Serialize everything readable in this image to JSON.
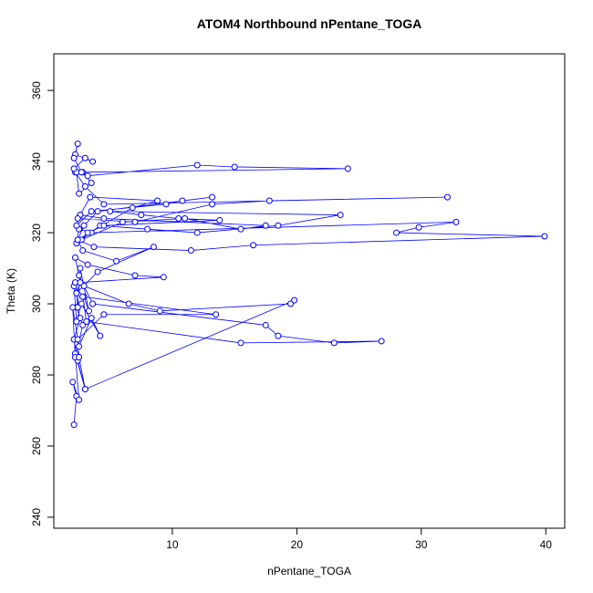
{
  "chart_data": {
    "type": "line_points",
    "title": "ATOM4 Northbound nPentane_TOGA",
    "x_label": "nPentane_TOGA",
    "y_label": "Theta (K)",
    "color": "#0000ff",
    "x": [
      2.1,
      2.3,
      2.0,
      2.5,
      2.2,
      3.0,
      2.4,
      2.1,
      2.6,
      2.3,
      2.8,
      2.2,
      2.0,
      2.5,
      3.5,
      4.2,
      2.7,
      2.3,
      2.1,
      2.9,
      3.3,
      2.6,
      2.4,
      2.2,
      6.5,
      9.0,
      19.5,
      19.8,
      3.0,
      2.5,
      2.4,
      4.5,
      13.5,
      2.8,
      3.1,
      15.5,
      26.8,
      23.0,
      18.5,
      17.5,
      3.6,
      2.9,
      2.5,
      2.2,
      3.2,
      7.0,
      9.3,
      2.6,
      2.3,
      4.0,
      8.5,
      5.5,
      2.8,
      2.4,
      3.7,
      11.5,
      16.5,
      39.9,
      28,
      29.8,
      32.8,
      3.5,
      2.5,
      2.3,
      4.2,
      8.0,
      12.0,
      18.5,
      23.5,
      5.0,
      7.5,
      10.5,
      13.8,
      4.5,
      3.2,
      2.7,
      6.0,
      11.0,
      15.5,
      17.5,
      4.5,
      2.6,
      2.3,
      3.5,
      9.5,
      10.8,
      13.2,
      4.0,
      2.9,
      2.4,
      6.8,
      8.8,
      3.4,
      2.6,
      2.4,
      7.0,
      13.2,
      17.8,
      32.1,
      4.5,
      3.0,
      2.2,
      3.2,
      12.0,
      15.0,
      24.1,
      2.8,
      3.5,
      2.5,
      2.3,
      2.1,
      3.0,
      3.6,
      2.2,
      2.4,
      2.1,
      2.7
    ],
    "values": [
      266,
      274,
      278,
      273,
      286,
      276,
      284,
      290,
      296,
      299,
      294,
      285,
      299,
      288,
      296,
      291,
      300,
      295,
      305,
      302,
      298,
      310,
      299,
      306,
      300,
      298,
      300,
      301,
      276,
      285,
      290,
      297,
      297,
      302,
      295,
      289,
      289.5,
      289,
      291,
      294,
      300,
      305,
      308,
      313,
      311,
      308,
      307.5,
      306,
      303,
      309,
      316,
      312,
      315,
      318,
      316,
      315,
      316.5,
      319,
      320,
      321.5,
      323,
      320,
      321,
      317,
      322,
      321,
      320,
      322,
      325,
      326,
      325,
      324,
      323.5,
      322,
      320,
      318,
      323,
      324,
      321,
      322,
      324,
      325,
      322,
      326,
      328,
      329,
      330,
      326,
      322,
      318,
      327,
      329,
      330,
      325,
      324,
      323,
      328,
      329,
      330,
      328,
      333,
      337,
      336,
      339,
      338.5,
      338,
      337,
      334,
      331,
      337,
      338,
      341,
      340,
      342,
      345,
      341,
      337
    ],
    "xlim": [
      0.48,
      41.52
    ],
    "xticks": [
      10,
      20,
      30,
      40
    ],
    "ylim": [
      236.9,
      370.3
    ],
    "yticks": [
      240,
      260,
      280,
      300,
      320,
      340,
      360
    ]
  }
}
